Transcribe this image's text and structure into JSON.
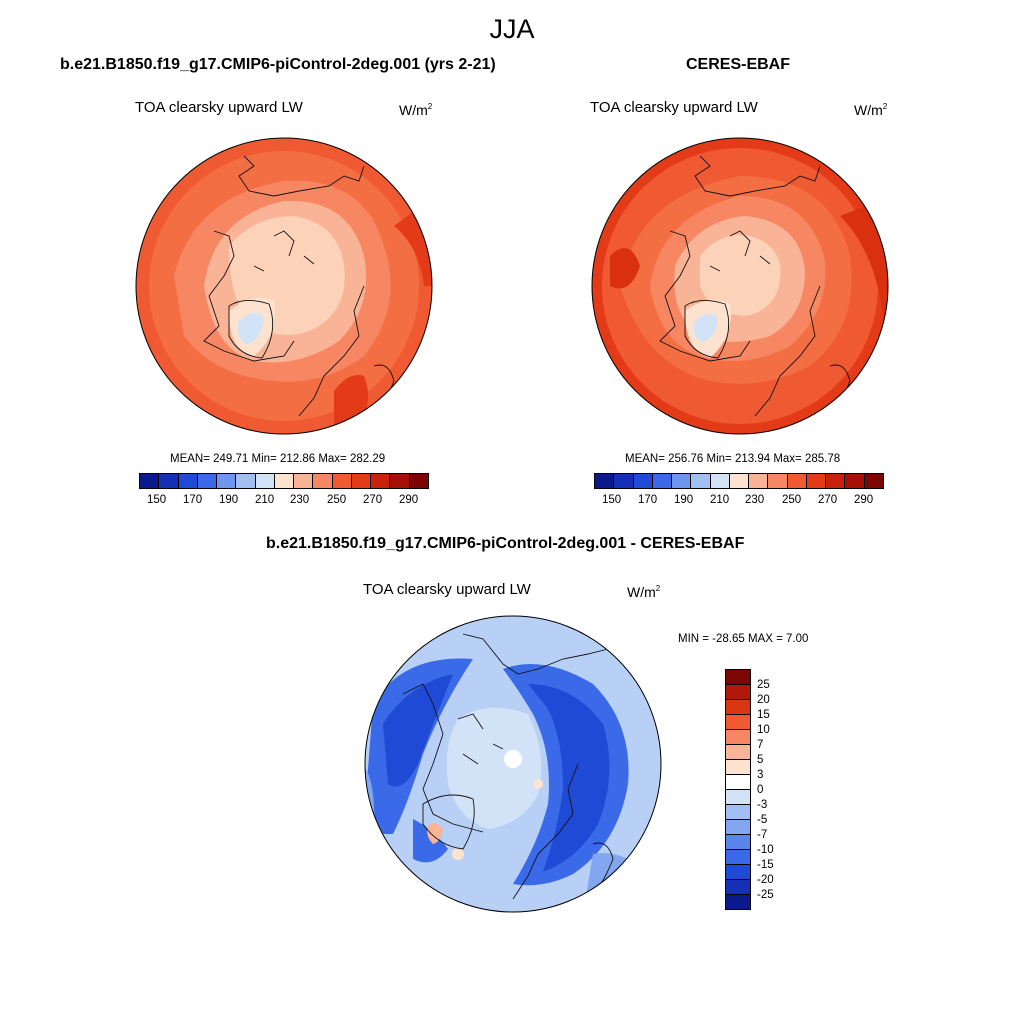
{
  "season": "JJA",
  "panels": [
    {
      "title": "b.e21.B1850.f19_g17.CMIP6-piControl-2deg.001 (yrs 2-21)",
      "variable": "TOA clearsky upward LW",
      "units_base": "W/m",
      "units_exp": "2",
      "stats": "MEAN= 249.71  Min= 212.86  Max= 282.29",
      "mean": 249.71,
      "min": 212.86,
      "max": 282.29
    },
    {
      "title": "CERES-EBAF",
      "variable": "TOA clearsky upward LW",
      "units_base": "W/m",
      "units_exp": "2",
      "stats": "MEAN= 256.76  Min= 213.94  Max= 285.78",
      "mean": 256.76,
      "min": 213.94,
      "max": 285.78
    },
    {
      "title": "b.e21.B1850.f19_g17.CMIP6-piControl-2deg.001 - CERES-EBAF",
      "variable": "TOA clearsky upward LW",
      "units_base": "W/m",
      "units_exp": "2",
      "stats": "MIN = -28.65 MAX =   7.00",
      "min": -28.65,
      "max": 7.0
    }
  ],
  "colorbar_abs": {
    "tick_labels": [
      "150",
      "170",
      "190",
      "210",
      "230",
      "250",
      "270",
      "290"
    ],
    "colors": [
      "#0a1a8c",
      "#1530b4",
      "#1f4ad6",
      "#3a6ae8",
      "#6f95ee",
      "#a2bff4",
      "#d3e3f7",
      "#fde3cf",
      "#f9b497",
      "#f68762",
      "#f05a32",
      "#e33b17",
      "#c9220a",
      "#a41104",
      "#7c0602"
    ]
  },
  "colorbar_diff": {
    "tick_labels": [
      "25",
      "20",
      "15",
      "10",
      "7",
      "5",
      "3",
      "0",
      "-3",
      "-5",
      "-7",
      "-10",
      "-15",
      "-20",
      "-25"
    ],
    "colors": [
      "#7c0602",
      "#b0180a",
      "#d93612",
      "#f05a32",
      "#f68762",
      "#f9b497",
      "#fde3cf",
      "#ffffff",
      "#d3e3f7",
      "#a2bff4",
      "#82a6f0",
      "#5a86ea",
      "#3a6ae8",
      "#1f4ad6",
      "#1530b4",
      "#0a1a8c"
    ]
  }
}
